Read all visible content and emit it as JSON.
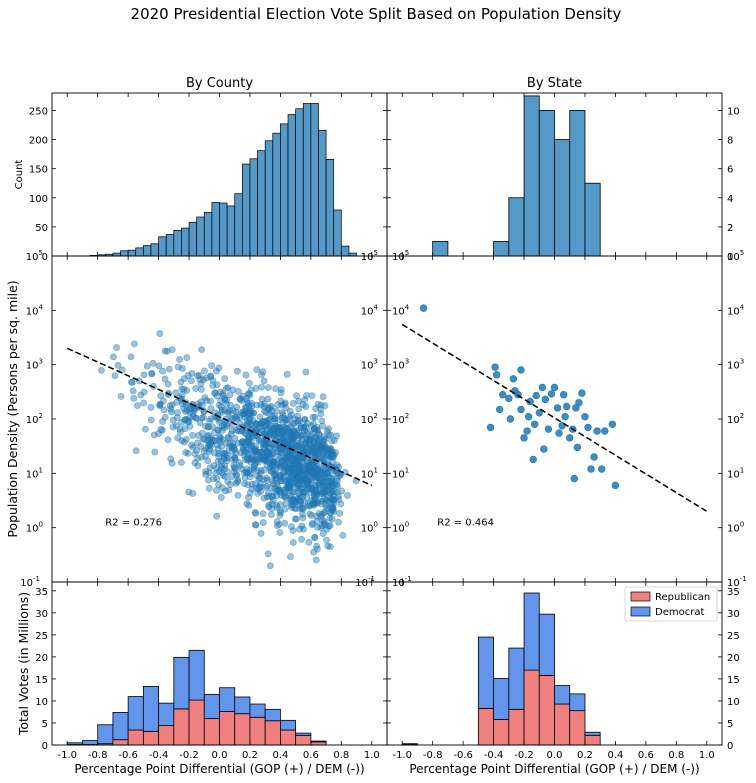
{
  "suptitle": "2020 Presidential Election Vote Split Based on Population Density",
  "colors": {
    "hist": "#5499c7",
    "scatter": "#1f77b4",
    "republican": "#f08080",
    "democrat": "#6495ed",
    "edge": "#000000"
  },
  "chart_data": [
    {
      "id": "county-hist",
      "type": "bar",
      "title": "By County",
      "ylabel": "Count",
      "xlim": [
        -1.1,
        1.1
      ],
      "ylim": [
        0,
        280
      ],
      "yticks": [
        0,
        50,
        100,
        150,
        200,
        250
      ],
      "bin_width": 0.05,
      "bin_starts": [
        -0.85,
        -0.8,
        -0.75,
        -0.7,
        -0.65,
        -0.6,
        -0.55,
        -0.5,
        -0.45,
        -0.4,
        -0.35,
        -0.3,
        -0.25,
        -0.2,
        -0.15,
        -0.1,
        -0.05,
        0.0,
        0.05,
        0.1,
        0.15,
        0.2,
        0.25,
        0.3,
        0.35,
        0.4,
        0.45,
        0.5,
        0.55,
        0.6,
        0.65,
        0.7,
        0.75,
        0.8,
        0.85
      ],
      "values": [
        1,
        2,
        3,
        5,
        9,
        10,
        14,
        18,
        21,
        33,
        37,
        44,
        48,
        58,
        67,
        75,
        92,
        91,
        86,
        107,
        158,
        167,
        181,
        198,
        211,
        227,
        243,
        253,
        262,
        262,
        216,
        166,
        79,
        17,
        5
      ]
    },
    {
      "id": "state-hist",
      "type": "bar",
      "title": "By State",
      "xlim": [
        -1.1,
        1.1
      ],
      "ylim": [
        0,
        11.2
      ],
      "yticks": [
        0,
        2,
        4,
        6,
        8,
        10
      ],
      "bin_width": 0.1,
      "bin_starts": [
        -0.9,
        -0.8,
        -0.7,
        -0.6,
        -0.5,
        -0.4,
        -0.3,
        -0.2,
        -0.1,
        0.0,
        0.1,
        0.2,
        0.3
      ],
      "values": [
        0,
        1,
        0,
        0,
        0,
        1,
        4,
        11,
        10,
        8,
        10,
        5,
        0
      ]
    },
    {
      "id": "county-scatter",
      "type": "scatter",
      "ylabel": "Population Density (Persons per sq. mile)",
      "yscale": "log",
      "xlim": [
        -1.1,
        1.1
      ],
      "ylim": [
        0.1,
        100000
      ],
      "yticks": [
        "10^-1",
        "10^0",
        "10^1",
        "10^2",
        "10^3",
        "10^4",
        "10^5"
      ],
      "fit_line": {
        "x": [
          -1.0,
          1.0
        ],
        "y": [
          2000,
          6
        ]
      },
      "annotation": "R2 = 0.276",
      "annotation_x": -0.75,
      "annotation_y": 1.1,
      "sample": {
        "n": 1400,
        "slope": -1.3,
        "intercept": 1.8,
        "spread": 0.55
      }
    },
    {
      "id": "state-scatter",
      "type": "scatter",
      "yscale": "log",
      "xlim": [
        -1.1,
        1.1
      ],
      "ylim": [
        0.1,
        100000
      ],
      "yticks": [
        "10^-1",
        "10^0",
        "10^1",
        "10^2",
        "10^3",
        "10^4",
        "10^5"
      ],
      "fit_line": {
        "x": [
          -1.0,
          1.0
        ],
        "y": [
          5500,
          2
        ]
      },
      "annotation": "R2 = 0.464",
      "annotation_x": -0.77,
      "annotation_y": 1.1,
      "points": [
        [
          -0.86,
          11000
        ],
        [
          -0.42,
          70
        ],
        [
          -0.39,
          900
        ],
        [
          -0.38,
          650
        ],
        [
          -0.36,
          150
        ],
        [
          -0.34,
          280
        ],
        [
          -0.3,
          240
        ],
        [
          -0.29,
          100
        ],
        [
          -0.27,
          550
        ],
        [
          -0.26,
          330
        ],
        [
          -0.24,
          280
        ],
        [
          -0.22,
          800
        ],
        [
          -0.22,
          150
        ],
        [
          -0.2,
          45
        ],
        [
          -0.18,
          60
        ],
        [
          -0.17,
          110
        ],
        [
          -0.16,
          210
        ],
        [
          -0.14,
          18
        ],
        [
          -0.13,
          80
        ],
        [
          -0.12,
          270
        ],
        [
          -0.1,
          130
        ],
        [
          -0.08,
          380
        ],
        [
          -0.07,
          28
        ],
        [
          -0.06,
          230
        ],
        [
          -0.04,
          65
        ],
        [
          -0.02,
          290
        ],
        [
          0.0,
          380
        ],
        [
          0.02,
          160
        ],
        [
          0.03,
          55
        ],
        [
          0.05,
          75
        ],
        [
          0.06,
          280
        ],
        [
          0.07,
          110
        ],
        [
          0.08,
          170
        ],
        [
          0.1,
          45
        ],
        [
          0.12,
          65
        ],
        [
          0.13,
          8
        ],
        [
          0.14,
          160
        ],
        [
          0.15,
          30
        ],
        [
          0.16,
          200
        ],
        [
          0.18,
          300
        ],
        [
          0.2,
          110
        ],
        [
          0.22,
          70
        ],
        [
          0.24,
          12
        ],
        [
          0.26,
          20
        ],
        [
          0.28,
          60
        ],
        [
          0.31,
          12
        ],
        [
          0.33,
          60
        ],
        [
          0.38,
          80
        ],
        [
          0.4,
          6
        ]
      ]
    },
    {
      "id": "county-votes",
      "type": "bar",
      "ylabel": "Total Votes (in Millions)",
      "xlabel": "Percentage Point Differential (GOP (+) / DEM (-))",
      "xlim": [
        -1.1,
        1.1
      ],
      "ylim": [
        0,
        37
      ],
      "yticks": [
        0,
        5,
        10,
        15,
        20,
        25,
        30,
        35
      ],
      "xticks": [
        "-1.0",
        "-0.8",
        "-0.6",
        "-0.4",
        "-0.2",
        "0.0",
        "0.2",
        "0.4",
        "0.6",
        "0.8",
        "1.0"
      ],
      "bin_width": 0.1,
      "bin_starts": [
        -1.0,
        -0.9,
        -0.8,
        -0.7,
        -0.6,
        -0.5,
        -0.4,
        -0.3,
        -0.2,
        -0.1,
        0.0,
        0.1,
        0.2,
        0.3,
        0.4,
        0.5,
        0.6
      ],
      "series": [
        {
          "name": "Republican",
          "values": [
            0.1,
            0.1,
            0.3,
            1.2,
            3.4,
            3.1,
            4.4,
            8.2,
            10.2,
            6.0,
            7.6,
            7.1,
            6.3,
            5.5,
            3.4,
            2.2,
            0.7
          ]
        },
        {
          "name": "Democrat",
          "values": [
            0.4,
            0.9,
            4.3,
            6.2,
            7.6,
            10.2,
            5.1,
            11.7,
            11.3,
            5.5,
            5.4,
            3.8,
            3.0,
            2.6,
            2.2,
            0.5,
            0.2
          ]
        }
      ]
    },
    {
      "id": "state-votes",
      "type": "bar",
      "xlabel": "Percentage Point Differential (GOP (+) / DEM (-))",
      "xlim": [
        -1.1,
        1.1
      ],
      "ylim": [
        0,
        37
      ],
      "yticks": [
        0,
        5,
        10,
        15,
        20,
        25,
        30,
        35
      ],
      "xticks": [
        "-1.0",
        "-0.8",
        "-0.6",
        "-0.4",
        "-0.2",
        "0.0",
        "0.2",
        "0.4",
        "0.6",
        "0.8",
        "1.0"
      ],
      "legend_position": "top-right",
      "bin_width": 0.1,
      "bin_starts": [
        -1.0,
        -0.5,
        -0.4,
        -0.3,
        -0.2,
        -0.1,
        0.0,
        0.1,
        0.2
      ],
      "series": [
        {
          "name": "Republican",
          "values": [
            0.1,
            8.3,
            5.8,
            8.1,
            17.0,
            15.8,
            9.3,
            7.8,
            2.2
          ]
        },
        {
          "name": "Democrat",
          "values": [
            0.2,
            16.2,
            9.3,
            13.9,
            17.5,
            13.9,
            4.2,
            3.8,
            0.7
          ]
        }
      ]
    }
  ]
}
